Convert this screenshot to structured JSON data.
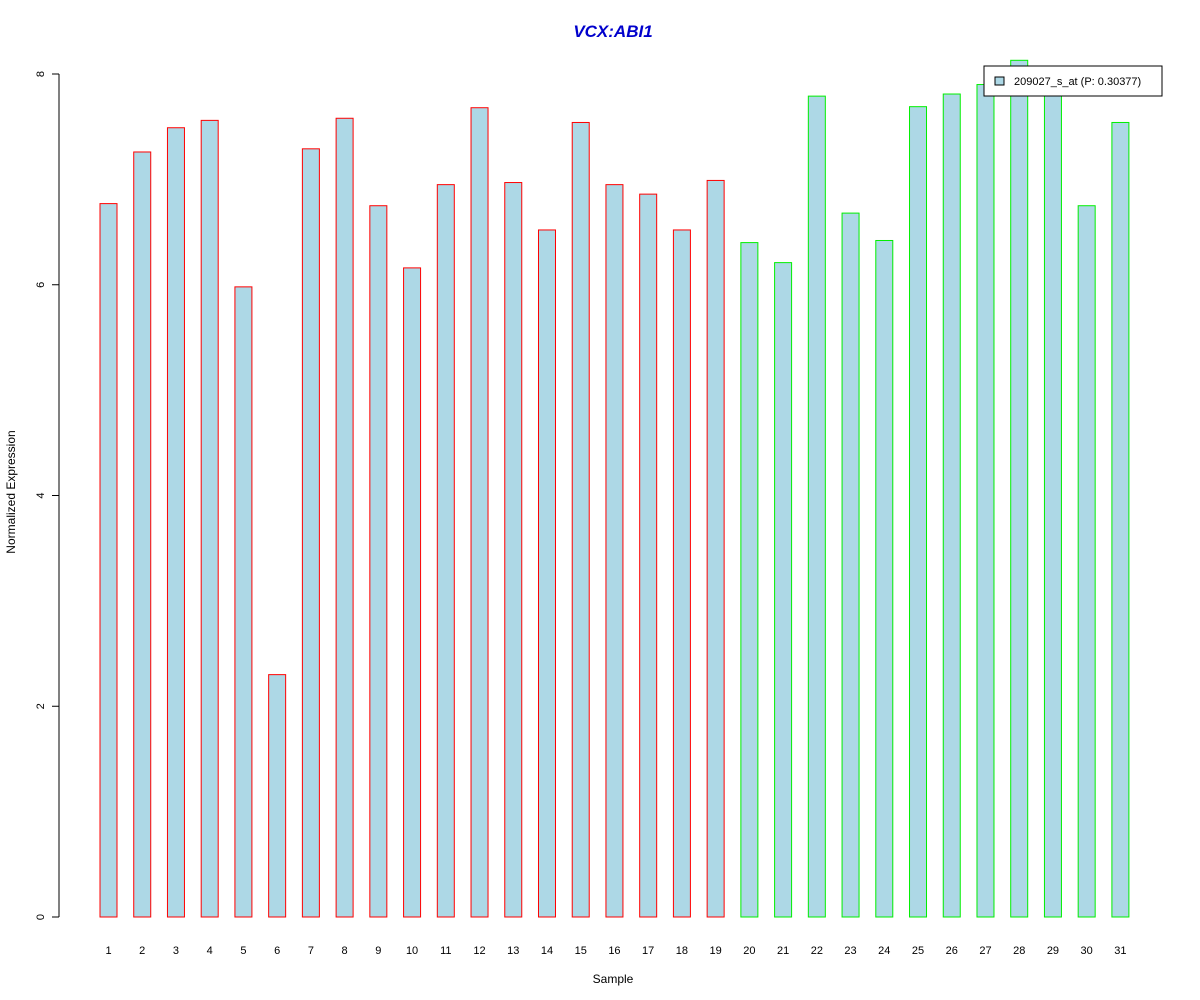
{
  "chart_data": {
    "type": "bar",
    "title": "VCX:ABI1",
    "xlabel": "Sample",
    "ylabel": "Normalized Expression",
    "categories": [
      "1",
      "2",
      "3",
      "4",
      "5",
      "6",
      "7",
      "8",
      "9",
      "10",
      "11",
      "12",
      "13",
      "14",
      "15",
      "16",
      "17",
      "18",
      "19",
      "20",
      "21",
      "22",
      "23",
      "24",
      "25",
      "26",
      "27",
      "28",
      "29",
      "30",
      "31"
    ],
    "series": [
      {
        "name": "209027_s_at (P: 0.30377)",
        "values": [
          6.77,
          7.26,
          7.49,
          7.56,
          5.98,
          2.3,
          7.29,
          7.58,
          6.75,
          6.16,
          6.95,
          7.68,
          6.97,
          6.52,
          7.54,
          6.95,
          6.86,
          6.52,
          6.99,
          6.4,
          6.21,
          7.79,
          6.68,
          6.42,
          7.69,
          7.81,
          7.9,
          8.13,
          7.87,
          6.75,
          7.54
        ],
        "fill": "#add8e6"
      }
    ],
    "group_border_colors": [
      "#ff0000",
      "#ff0000",
      "#ff0000",
      "#ff0000",
      "#ff0000",
      "#ff0000",
      "#ff0000",
      "#ff0000",
      "#ff0000",
      "#ff0000",
      "#ff0000",
      "#ff0000",
      "#ff0000",
      "#ff0000",
      "#ff0000",
      "#ff0000",
      "#ff0000",
      "#ff0000",
      "#ff0000",
      "#00ee00",
      "#00ee00",
      "#00ee00",
      "#00ee00",
      "#00ee00",
      "#00ee00",
      "#00ee00",
      "#00ee00",
      "#00ee00",
      "#00ee00",
      "#00ee00",
      "#00ee00"
    ],
    "yticks": [
      0,
      2,
      4,
      6,
      8
    ],
    "ylim": [
      0,
      8
    ],
    "grid": false,
    "legend_position": "top-right",
    "title_color": "#0000cc"
  }
}
